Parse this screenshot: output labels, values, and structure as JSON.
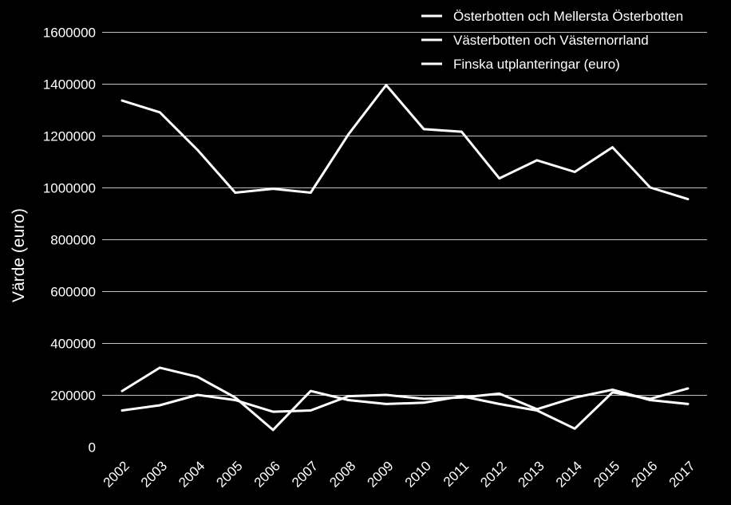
{
  "chart_data": {
    "type": "line",
    "title": "",
    "xlabel": "",
    "ylabel": "Värde (euro)",
    "ylim": [
      0,
      1600000
    ],
    "yticks": [
      0,
      200000,
      400000,
      600000,
      800000,
      1000000,
      1200000,
      1400000,
      1600000
    ],
    "grid": true,
    "legend_position": "top-right",
    "categories": [
      "2002",
      "2003",
      "2004",
      "2005",
      "2006",
      "2007",
      "2008",
      "2009",
      "2010",
      "2011",
      "2012",
      "2013",
      "2014",
      "2015",
      "2016",
      "2017"
    ],
    "series": [
      {
        "name": "Österbotten och Mellersta Österbotten",
        "color": "#ffffff",
        "values": [
          1335000,
          1290000,
          1145000,
          980000,
          995000,
          980000,
          1205000,
          1395000,
          1225000,
          1215000,
          1035000,
          1105000,
          1060000,
          1155000,
          1000000,
          955000
        ]
      },
      {
        "name": "Västerbotten och Västernorrland",
        "color": "#ffffff",
        "values": [
          215000,
          305000,
          270000,
          190000,
          65000,
          215000,
          180000,
          165000,
          170000,
          195000,
          165000,
          140000,
          70000,
          210000,
          185000,
          225000
        ]
      },
      {
        "name": "Finska utplanteringar (euro)",
        "color": "#ffffff",
        "values": [
          140000,
          160000,
          200000,
          180000,
          135000,
          140000,
          195000,
          200000,
          185000,
          190000,
          205000,
          145000,
          190000,
          220000,
          180000,
          165000
        ]
      }
    ]
  }
}
